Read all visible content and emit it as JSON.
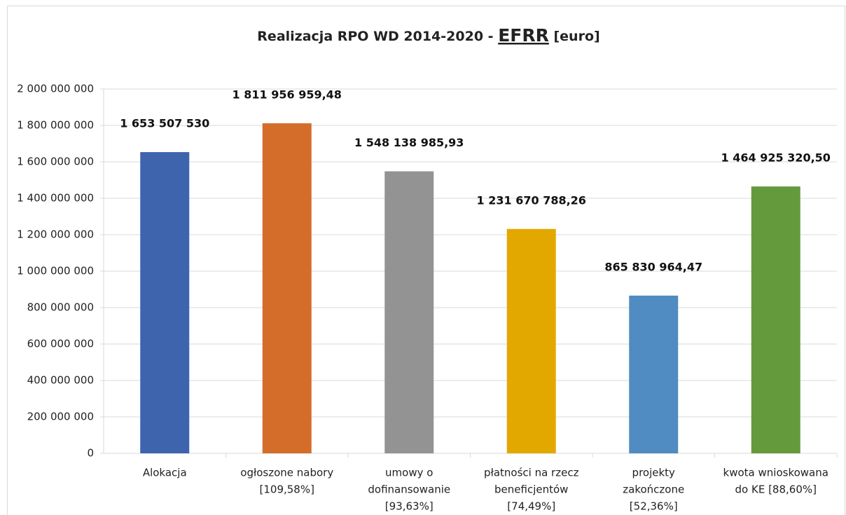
{
  "chart_data": {
    "type": "bar",
    "title": "Realizacja RPO WD 2014-2020 -",
    "title_emphasis": "EFRR",
    "title_suffix": "[euro]",
    "categories": [
      [
        "Alokacja"
      ],
      [
        "ogłoszone nabory",
        "[109,58%]"
      ],
      [
        "umowy o",
        "dofinansowanie",
        "[93,63%]"
      ],
      [
        "płatności na rzecz",
        "beneficjentów",
        "[74,49%]"
      ],
      [
        "projekty",
        "zakończone",
        "[52,36%]"
      ],
      [
        "kwota wnioskowana",
        "do KE [88,60%]"
      ]
    ],
    "values": [
      1653507530,
      1811956959.48,
      1548138985.93,
      1231670788.26,
      865830964.47,
      1464925320.5
    ],
    "value_labels": [
      "1 653 507 530",
      "1 811 956 959,48",
      "1 548 138 985,93",
      "1 231 670 788,26",
      "865 830 964,47",
      "1 464 925 320,50"
    ],
    "colors": [
      "#3e64ad",
      "#d46d29",
      "#939393",
      "#e3a800",
      "#508bc1",
      "#659a3c"
    ],
    "ylim": [
      0,
      2000000000
    ],
    "yticks": [
      0,
      {
        "value": 200000000,
        "label": "200 000 000"
      },
      {
        "value": 400000000,
        "label": "400 000 000"
      },
      {
        "value": 600000000,
        "label": "600 000 000"
      },
      {
        "value": 800000000,
        "label": "800 000 000"
      },
      {
        "value": 1000000000,
        "label": "1 000 000 000"
      },
      {
        "value": 1200000000,
        "label": "1 200 000 000"
      },
      {
        "value": 1400000000,
        "label": "1 400 000 000"
      },
      {
        "value": 1600000000,
        "label": "1 600 000 000"
      },
      {
        "value": 1800000000,
        "label": "1 800 000 000"
      },
      {
        "value": 2000000000,
        "label": "2 000 000 000"
      }
    ],
    "grid": true
  }
}
